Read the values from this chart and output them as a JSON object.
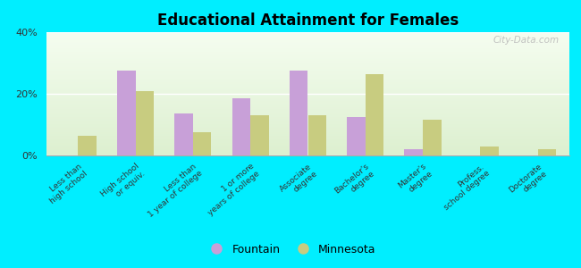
{
  "title": "Educational Attainment for Females",
  "categories": [
    "Less than\nhigh school",
    "High school\nor equiv.",
    "Less than\n1 year of college",
    "1 or more\nyears of college",
    "Associate\ndegree",
    "Bachelor's\ndegree",
    "Master's\ndegree",
    "Profess.\nschool degree",
    "Doctorate\ndegree"
  ],
  "fountain_values": [
    0.0,
    27.5,
    13.5,
    18.5,
    27.5,
    12.5,
    2.0,
    0.0,
    0.0
  ],
  "minnesota_values": [
    6.5,
    21.0,
    7.5,
    13.0,
    13.0,
    26.5,
    11.5,
    3.0,
    2.0
  ],
  "fountain_color": "#c8a0d8",
  "minnesota_color": "#c8cc80",
  "ylim": [
    0,
    40
  ],
  "yticks": [
    0,
    20,
    40
  ],
  "ytick_labels": [
    "0%",
    "20%",
    "40%"
  ],
  "plot_bg_top": "#f0fae8",
  "plot_bg_bottom": "#e0f0d0",
  "outer_background": "#00eeff",
  "bar_width": 0.32,
  "legend_labels": [
    "Fountain",
    "Minnesota"
  ],
  "watermark": "City-Data.com"
}
